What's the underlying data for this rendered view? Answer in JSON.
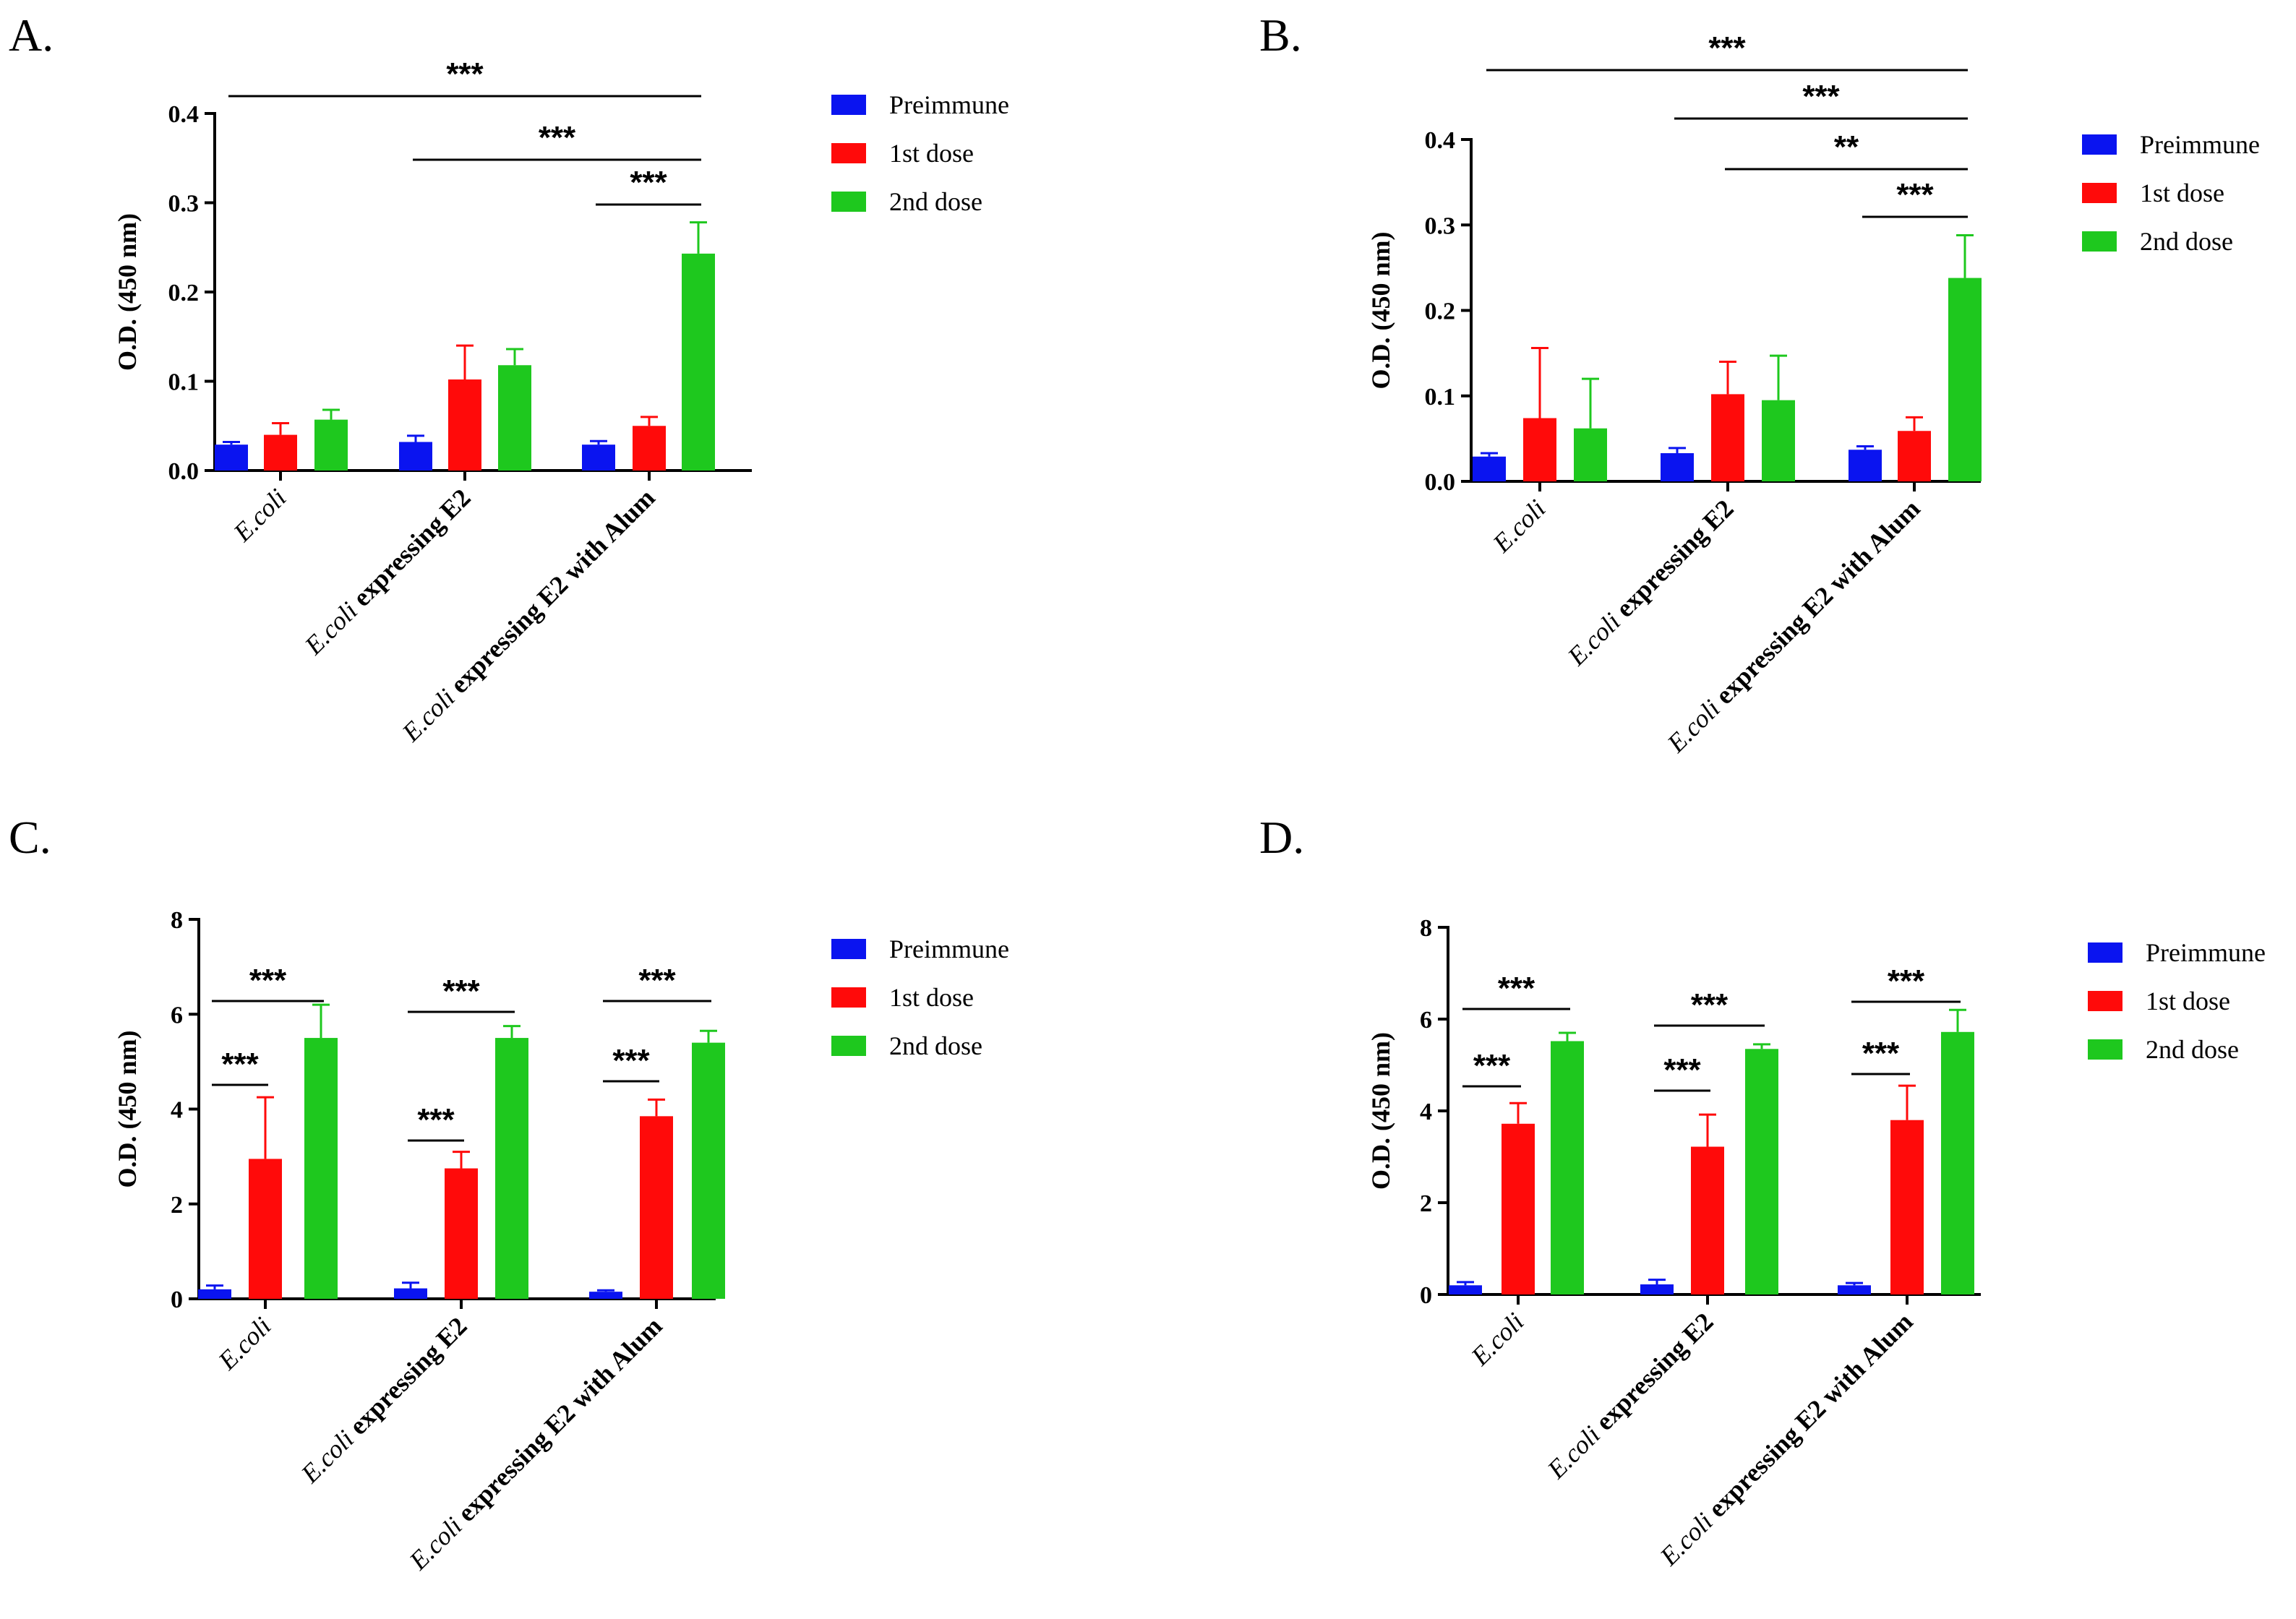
{
  "colors": {
    "preimmune": "#0a14f0",
    "dose1": "#ff0a0a",
    "dose2": "#1ec81e"
  },
  "chart_data": [
    {
      "panel": "A.",
      "type": "bar",
      "ylabel": "O.D. (450 nm)",
      "ylim": [
        0,
        0.4
      ],
      "yticks": [
        "0.0",
        "0.1",
        "0.2",
        "0.3",
        "0.4"
      ],
      "categories": [
        {
          "italic": "E.coli",
          "bold": ""
        },
        {
          "italic": "E.coli",
          "bold": " expressing E2"
        },
        {
          "italic": "E.coli",
          "bold": " expressing E2 with Alum"
        }
      ],
      "series": [
        {
          "name": "Preimmune",
          "values": [
            0.029,
            0.032,
            0.029
          ],
          "errors": [
            0.003,
            0.007,
            0.004
          ]
        },
        {
          "name": "1st dose",
          "values": [
            0.04,
            0.102,
            0.05
          ],
          "errors": [
            0.013,
            0.038,
            0.01
          ]
        },
        {
          "name": "2nd dose",
          "values": [
            0.057,
            0.118,
            0.243
          ],
          "errors": [
            0.011,
            0.018,
            0.035
          ]
        }
      ],
      "significance": [
        {
          "label": "***",
          "from": 0,
          "to": 8
        },
        {
          "label": "***",
          "from": 3,
          "to": 8
        },
        {
          "label": "***",
          "from": 6,
          "to": 8
        }
      ]
    },
    {
      "panel": "B.",
      "type": "bar",
      "ylabel": "O.D. (450 nm)",
      "ylim": [
        0,
        0.4
      ],
      "yticks": [
        "0.0",
        "0.1",
        "0.2",
        "0.3",
        "0.4"
      ],
      "categories": [
        {
          "italic": "E.coli",
          "bold": ""
        },
        {
          "italic": "E.coli",
          "bold": " expressing E2"
        },
        {
          "italic": "E.coli",
          "bold": " expressing E2 with Alum"
        }
      ],
      "series": [
        {
          "name": "Preimmune",
          "values": [
            0.029,
            0.033,
            0.037
          ],
          "errors": [
            0.004,
            0.006,
            0.004
          ]
        },
        {
          "name": "1st dose",
          "values": [
            0.074,
            0.102,
            0.059
          ],
          "errors": [
            0.082,
            0.038,
            0.016
          ]
        },
        {
          "name": "2nd dose",
          "values": [
            0.062,
            0.095,
            0.238
          ],
          "errors": [
            0.058,
            0.052,
            0.05
          ]
        }
      ],
      "significance": [
        {
          "label": "***",
          "from": 0,
          "to": 8
        },
        {
          "label": "***",
          "from": 3,
          "to": 8
        },
        {
          "label": "**",
          "from": 4,
          "to": 8
        },
        {
          "label": "***",
          "from": 6,
          "to": 8
        }
      ]
    },
    {
      "panel": "C.",
      "type": "bar",
      "ylabel": "O.D. (450 nm)",
      "ylim": [
        0,
        8
      ],
      "yticks": [
        "0",
        "2",
        "4",
        "6",
        "8"
      ],
      "categories": [
        {
          "italic": "E.coli",
          "bold": ""
        },
        {
          "italic": "E.coli",
          "bold": " expressing E2"
        },
        {
          "italic": "E.coli",
          "bold": " expressing E2 with Alum"
        }
      ],
      "series": [
        {
          "name": "Preimmune",
          "values": [
            0.2,
            0.22,
            0.15
          ],
          "errors": [
            0.08,
            0.12,
            0.03
          ]
        },
        {
          "name": "1st dose",
          "values": [
            2.95,
            2.75,
            3.85
          ],
          "errors": [
            1.3,
            0.35,
            0.35
          ]
        },
        {
          "name": "2nd dose",
          "values": [
            5.5,
            5.5,
            5.4
          ],
          "errors": [
            0.7,
            0.25,
            0.25
          ]
        }
      ],
      "significance": [
        {
          "label": "***",
          "from": 0,
          "to": 1
        },
        {
          "label": "***",
          "from": 0,
          "to": 2
        },
        {
          "label": "***",
          "from": 3,
          "to": 4
        },
        {
          "label": "***",
          "from": 3,
          "to": 5
        },
        {
          "label": "***",
          "from": 6,
          "to": 7
        },
        {
          "label": "***",
          "from": 6,
          "to": 8
        }
      ]
    },
    {
      "panel": "D.",
      "type": "bar",
      "ylabel": "O.D. (450 nm)",
      "ylim": [
        0,
        8
      ],
      "yticks": [
        "0",
        "2",
        "4",
        "6",
        "8"
      ],
      "categories": [
        {
          "italic": "E.coli",
          "bold": ""
        },
        {
          "italic": "E.coli",
          "bold": " expressing E2"
        },
        {
          "italic": "E.coli",
          "bold": " expressing E2 with Alum"
        }
      ],
      "series": [
        {
          "name": "Preimmune",
          "values": [
            0.2,
            0.22,
            0.2
          ],
          "errors": [
            0.07,
            0.1,
            0.05
          ]
        },
        {
          "name": "1st dose",
          "values": [
            3.72,
            3.22,
            3.8
          ],
          "errors": [
            0.45,
            0.7,
            0.75
          ]
        },
        {
          "name": "2nd dose",
          "values": [
            5.52,
            5.35,
            5.72
          ],
          "errors": [
            0.18,
            0.1,
            0.48
          ]
        }
      ],
      "significance": [
        {
          "label": "***",
          "from": 0,
          "to": 1
        },
        {
          "label": "***",
          "from": 0,
          "to": 2
        },
        {
          "label": "***",
          "from": 3,
          "to": 4
        },
        {
          "label": "***",
          "from": 3,
          "to": 5
        },
        {
          "label": "***",
          "from": 6,
          "to": 7
        },
        {
          "label": "***",
          "from": 6,
          "to": 8
        }
      ]
    }
  ]
}
